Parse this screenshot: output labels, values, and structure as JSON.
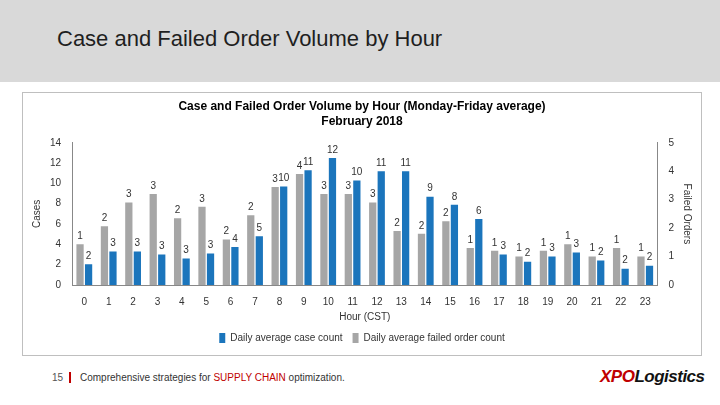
{
  "header": {
    "title": "Case and Failed Order Volume by Hour"
  },
  "footer": {
    "page": "15",
    "text": [
      "Comprehensive strategies for ",
      "SUPPLY CHAIN",
      " optimization."
    ],
    "logo": [
      "XPO",
      "Logistics"
    ]
  },
  "chart_data": {
    "type": "bar",
    "title": "Case and Failed Order Volume by Hour (Monday-Friday average)",
    "subtitle": "February 2018",
    "x_label": "Hour (CST)",
    "y_label": "Cases",
    "y2_label": "Failed Orders",
    "categories": [
      "0",
      "1",
      "2",
      "3",
      "4",
      "5",
      "6",
      "7",
      "8",
      "9",
      "10",
      "11",
      "12",
      "13",
      "14",
      "15",
      "16",
      "17",
      "18",
      "19",
      "20",
      "21",
      "22",
      "23"
    ],
    "ylim": [
      0,
      14
    ],
    "yticks": [
      0,
      2,
      4,
      6,
      8,
      10,
      12,
      14
    ],
    "y2lim": [
      0,
      5
    ],
    "y2ticks": [
      0,
      1,
      2,
      3,
      4,
      5
    ],
    "grid": false,
    "legend": "bottom",
    "data_labels": true,
    "series": [
      {
        "name": "Daily average case count",
        "color": "#1b75bc",
        "values": [
          2.05,
          3.3,
          3.3,
          3.0,
          2.6,
          3.1,
          3.75,
          4.8,
          9.7,
          11.3,
          12.5,
          10.3,
          11.2,
          11.2,
          8.7,
          7.9,
          6.5,
          3.0,
          2.3,
          2.8,
          3.2,
          2.4,
          1.6,
          1.9
        ],
        "value_labels": [
          "2",
          "3",
          "3",
          "3",
          "3",
          "3",
          "4",
          "5",
          "10",
          "11",
          "12",
          "10",
          "11",
          "11",
          "9",
          "8",
          "6",
          "3",
          "2",
          "3",
          "3",
          "2",
          "2",
          "2"
        ]
      },
      {
        "name": "Daily average failed order count",
        "color": "#a6a6a6",
        "axis": "y2",
        "values": [
          1.43,
          2.07,
          2.9,
          3.2,
          2.35,
          2.75,
          1.6,
          2.45,
          3.45,
          3.9,
          3.2,
          3.2,
          2.9,
          1.9,
          1.8,
          2.24,
          1.3,
          1.2,
          1.0,
          1.2,
          1.43,
          1.0,
          1.3,
          1.0
        ],
        "value_labels": [
          "1",
          "2",
          "3",
          "3",
          "2",
          "3",
          "2",
          "2",
          "3",
          "4",
          "3",
          "3",
          "3",
          "2",
          "2",
          "2",
          "1",
          "1",
          "1",
          "1",
          "1",
          "1",
          "1",
          "1"
        ]
      }
    ]
  }
}
